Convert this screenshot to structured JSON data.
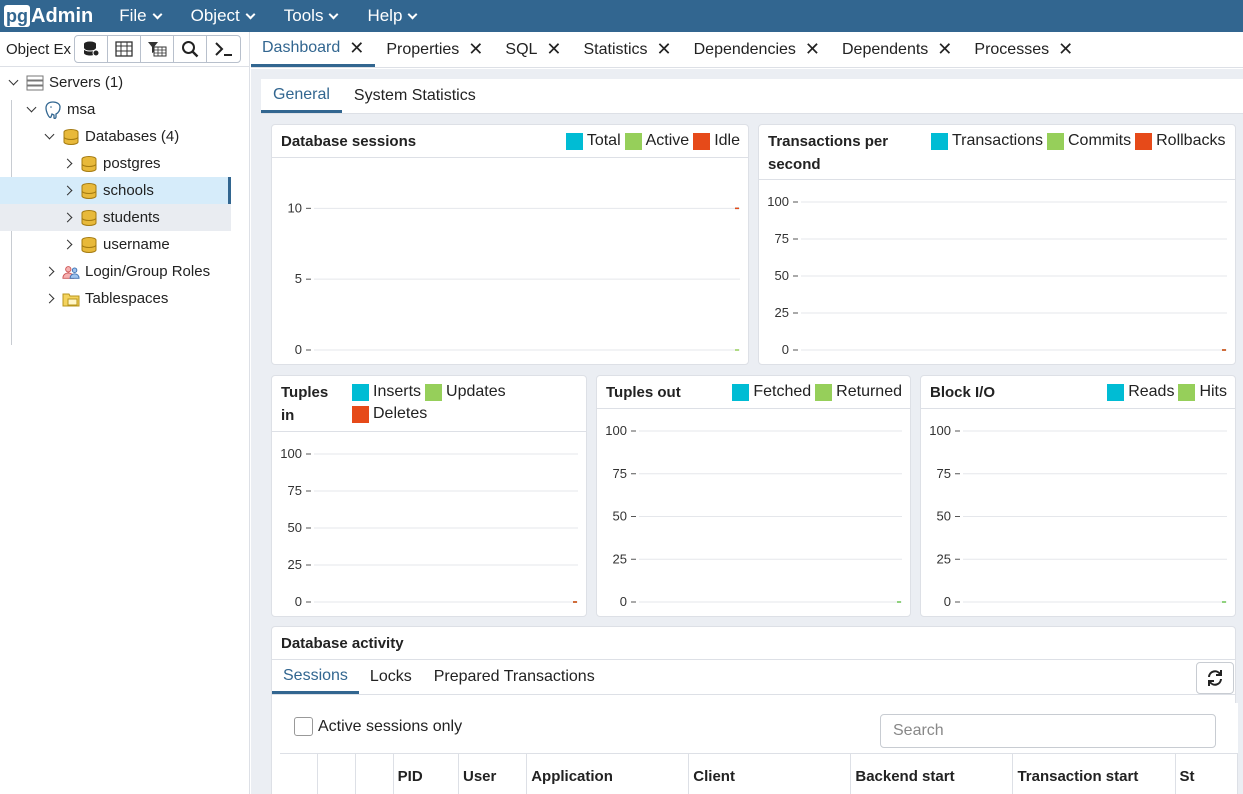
{
  "app": {
    "logo_pg": "pg",
    "logo_admin": "Admin"
  },
  "menu": [
    "File",
    "Object",
    "Tools",
    "Help"
  ],
  "object_explorer": {
    "title": "Object Ex",
    "toolbar": [
      "query-tool-icon",
      "view-data-icon",
      "filtered-rows-icon",
      "search-objects-icon",
      "psql-tool-icon"
    ]
  },
  "tree": [
    {
      "label": "Servers (1)",
      "level": 0,
      "expanded": true,
      "icon": "servers-icon"
    },
    {
      "label": "msa",
      "level": 1,
      "expanded": true,
      "icon": "postgres-elephant-icon"
    },
    {
      "label": "Databases (4)",
      "level": 2,
      "expanded": true,
      "icon": "database-icon"
    },
    {
      "label": "postgres",
      "level": 3,
      "expanded": false,
      "icon": "database-icon"
    },
    {
      "label": "schools",
      "level": 3,
      "expanded": false,
      "icon": "database-icon",
      "selected": true
    },
    {
      "label": "students",
      "level": 3,
      "expanded": false,
      "icon": "database-icon",
      "hovered": true
    },
    {
      "label": "username",
      "level": 3,
      "expanded": false,
      "icon": "database-icon"
    },
    {
      "label": "Login/Group Roles",
      "level": 2,
      "expanded": false,
      "icon": "roles-icon"
    },
    {
      "label": "Tablespaces",
      "level": 2,
      "expanded": false,
      "icon": "tablespaces-icon"
    }
  ],
  "main_tabs": [
    "Dashboard",
    "Properties",
    "SQL",
    "Statistics",
    "Dependencies",
    "Dependents",
    "Processes"
  ],
  "active_main_tab": "Dashboard",
  "sub_tabs": [
    "General",
    "System Statistics"
  ],
  "active_sub_tab": "General",
  "colors": {
    "total": "#00bcd4",
    "active": "#96cf5a",
    "idle": "#e64a19",
    "accent": "#326690"
  },
  "chart_data": [
    {
      "type": "line",
      "title": "Database sessions",
      "legend": [
        "Total",
        "Active",
        "Idle"
      ],
      "yticks": [
        0,
        5,
        10
      ],
      "ylim": [
        0,
        12
      ],
      "series": [
        {
          "name": "Total",
          "values": [
            10
          ]
        },
        {
          "name": "Active",
          "values": [
            0
          ]
        },
        {
          "name": "Idle",
          "values": [
            10
          ]
        }
      ]
    },
    {
      "type": "line",
      "title": "Transactions per second",
      "title_lines": [
        "Transactions per",
        "second"
      ],
      "legend": [
        "Transactions",
        "Commits",
        "Rollbacks"
      ],
      "yticks": [
        0,
        25,
        50,
        75,
        100
      ],
      "ylim": [
        0,
        100
      ],
      "series": [
        {
          "name": "Transactions",
          "values": [
            0
          ]
        },
        {
          "name": "Commits",
          "values": [
            0
          ]
        },
        {
          "name": "Rollbacks",
          "values": [
            0
          ]
        }
      ]
    },
    {
      "type": "line",
      "title": "Tuples in",
      "title_lines": [
        "Tuples",
        "in"
      ],
      "legend": [
        "Inserts",
        "Updates",
        "Deletes"
      ],
      "yticks": [
        0,
        25,
        50,
        75,
        100
      ],
      "ylim": [
        0,
        100
      ],
      "series": [
        {
          "name": "Inserts",
          "values": [
            0
          ]
        },
        {
          "name": "Updates",
          "values": [
            0
          ]
        },
        {
          "name": "Deletes",
          "values": [
            0
          ]
        }
      ]
    },
    {
      "type": "line",
      "title": "Tuples out",
      "legend": [
        "Fetched",
        "Returned"
      ],
      "yticks": [
        0,
        25,
        50,
        75,
        100
      ],
      "ylim": [
        0,
        100
      ],
      "series": [
        {
          "name": "Fetched",
          "values": [
            0
          ]
        },
        {
          "name": "Returned",
          "values": [
            0
          ]
        }
      ]
    },
    {
      "type": "line",
      "title": "Block I/O",
      "legend": [
        "Reads",
        "Hits"
      ],
      "yticks": [
        0,
        25,
        50,
        75,
        100
      ],
      "ylim": [
        0,
        100
      ],
      "series": [
        {
          "name": "Reads",
          "values": [
            0
          ]
        },
        {
          "name": "Hits",
          "values": [
            0
          ]
        }
      ]
    }
  ],
  "activity": {
    "title": "Database activity",
    "tabs": [
      "Sessions",
      "Locks",
      "Prepared Transactions"
    ],
    "active_tab": "Sessions",
    "active_only_label": "Active sessions only",
    "search_placeholder": "Search",
    "columns": [
      "",
      "",
      "",
      "PID",
      "User",
      "Application",
      "Client",
      "Backend start",
      "Transaction start",
      "St"
    ]
  }
}
